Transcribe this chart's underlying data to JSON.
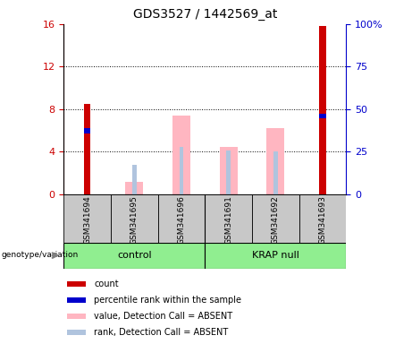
{
  "title": "GDS3527 / 1442569_at",
  "samples": [
    "GSM341694",
    "GSM341695",
    "GSM341696",
    "GSM341691",
    "GSM341692",
    "GSM341693"
  ],
  "ylim_left": [
    0,
    16
  ],
  "ylim_right": [
    0,
    100
  ],
  "yticks_left": [
    0,
    4,
    8,
    12,
    16
  ],
  "ytick_labels_left": [
    "0",
    "4",
    "8",
    "12",
    "16"
  ],
  "yticks_right": [
    0,
    25,
    50,
    75,
    100
  ],
  "ytick_labels_right": [
    "0",
    "25",
    "50",
    "75",
    "100%"
  ],
  "red_bars": [
    8.5,
    0.0,
    0.0,
    0.0,
    0.0,
    15.8
  ],
  "blue_bars": [
    6.2,
    0.0,
    0.0,
    0.0,
    0.0,
    7.6
  ],
  "pink_bars": [
    0.0,
    1.2,
    7.4,
    4.5,
    6.2,
    0.0
  ],
  "lightblue_bars": [
    0.0,
    2.8,
    4.5,
    4.1,
    4.0,
    0.0
  ],
  "red_color": "#CC0000",
  "blue_color": "#0000CC",
  "pink_color": "#FFB6C1",
  "lightblue_color": "#B0C4DE",
  "legend_items": [
    {
      "label": "count",
      "color": "#CC0000"
    },
    {
      "label": "percentile rank within the sample",
      "color": "#0000CC"
    },
    {
      "label": "value, Detection Call = ABSENT",
      "color": "#FFB6C1"
    },
    {
      "label": "rank, Detection Call = ABSENT",
      "color": "#B0C4DE"
    }
  ],
  "group_label_control": "control",
  "group_label_krap": "KRAP null",
  "genotype_label": "genotype/variation",
  "green_color": "#90EE90",
  "gray_color": "#C8C8C8",
  "title_fontsize": 10,
  "axis_fontsize": 8,
  "label_fontsize": 7,
  "legend_fontsize": 7
}
